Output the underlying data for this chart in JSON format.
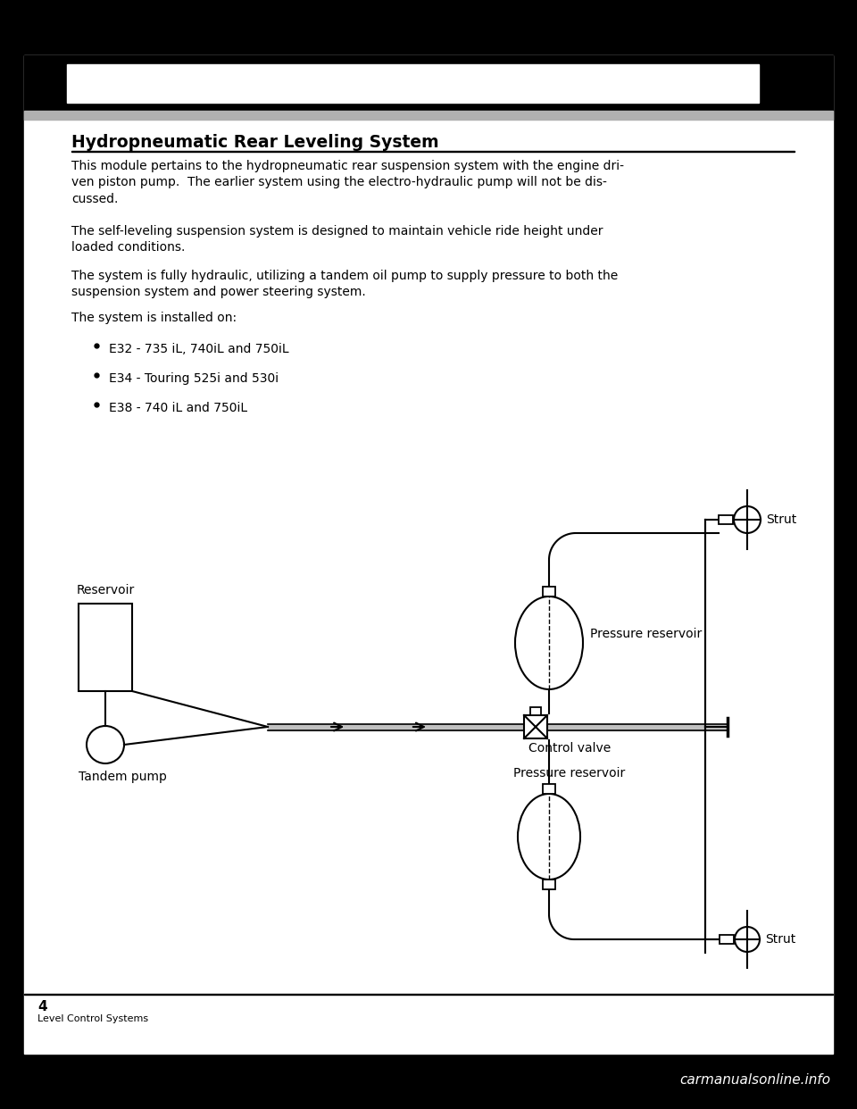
{
  "bg_color": "#000000",
  "page_bg": "#ffffff",
  "title": "Hydropneumatic Rear Leveling System",
  "body_paragraphs": [
    "This module pertains to the hydropneumatic rear suspension system with the engine dri-\nven piston pump.  The earlier system using the electro-hydraulic pump will not be dis-\ncussed.",
    "The self-leveling suspension system is designed to maintain vehicle ride height under\nloaded conditions.",
    "The system is fully hydraulic, utilizing a tandem oil pump to supply pressure to both the\nsuspension system and power steering system.",
    "The system is installed on:"
  ],
  "bullet_items": [
    "E32 - 735 iL, 740iL and 750iL",
    "E34 - Touring 525i and 530i",
    "E38 - 740 iL and 750iL"
  ],
  "footer_page": "4",
  "footer_text": "Level Control Systems",
  "watermark": "carmanualsonline.info",
  "lbl_reservoir": "Reservoir",
  "lbl_tandem_pump": "Tandem pump",
  "lbl_pressure_res_top": "Pressure reservoir",
  "lbl_pressure_res_bot": "Pressure reservoir",
  "lbl_control_valve": "Control valve",
  "lbl_strut_top": "Strut",
  "lbl_strut_bot": "Strut"
}
